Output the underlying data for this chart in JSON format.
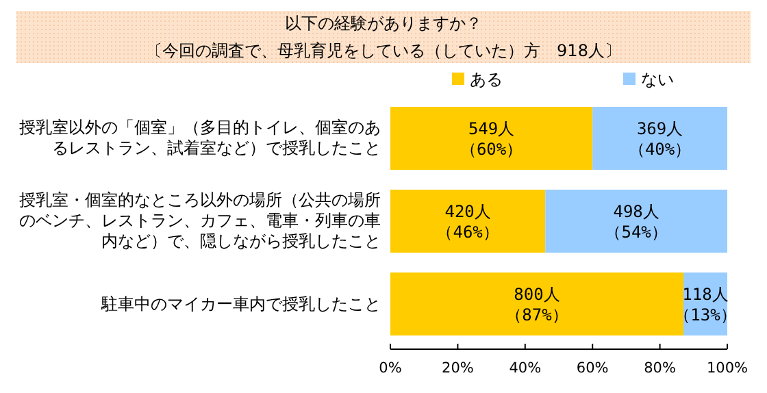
{
  "chart_data": {
    "type": "bar",
    "orientation": "horizontal",
    "stacked": true,
    "title": "以下の経験がありますか？",
    "subtitle": "〔今回の調査で、母乳育児をしている（していた）方　918人〕",
    "categories": [
      "授乳室以外の「個室」（多目的トイレ、個室のあるレストラン、試着室など）で授乳したこと",
      "授乳室・個室的なところ以外の場所（公共の場所のベンチ、レストラン、カフェ、電車・列車の車内など）で、隠しながら授乳したこと",
      "駐車中のマイカー車内で授乳したこと"
    ],
    "series": [
      {
        "name": "ある",
        "color": "#ffcc00",
        "values": [
          60,
          46,
          87
        ],
        "value_labels": [
          "549人（60%）",
          "420人（46%）",
          "800人（87%）"
        ]
      },
      {
        "name": "ない",
        "color": "#99ccff",
        "values": [
          40,
          54,
          13
        ],
        "value_labels": [
          "369人（40%）",
          "498人（54%）",
          "118人（13%）"
        ]
      }
    ],
    "xlim": [
      0,
      100
    ],
    "xticks": [
      {
        "value": 0,
        "label": "0%"
      },
      {
        "value": 20,
        "label": "20%"
      },
      {
        "value": 40,
        "label": "40%"
      },
      {
        "value": 60,
        "label": "60%"
      },
      {
        "value": 80,
        "label": "80%"
      },
      {
        "value": 100,
        "label": "100%"
      }
    ],
    "legend": "top right"
  }
}
